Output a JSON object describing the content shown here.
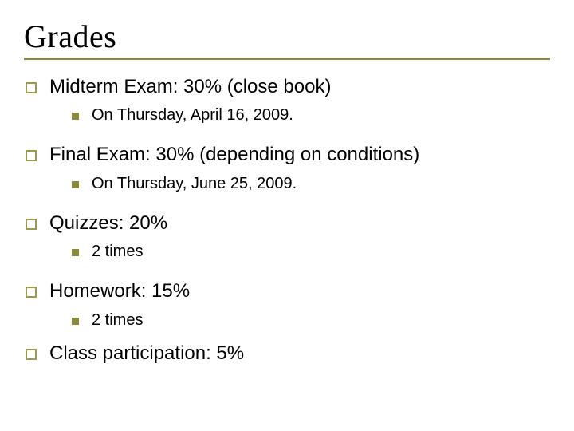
{
  "title": "Grades",
  "colors": {
    "accent": "#8a8a3a",
    "text": "#000000",
    "background": "#ffffff"
  },
  "typography": {
    "title_font": "Times New Roman",
    "body_font": "Verdana",
    "title_size_pt": 30,
    "level1_size_pt": 18,
    "level2_size_pt": 15
  },
  "items": [
    {
      "label": "Midterm Exam: 30% (close book)",
      "sub": "On Thursday, April 16, 2009."
    },
    {
      "label": "Final Exam: 30% (depending on conditions)",
      "sub": "On Thursday, June 25, 2009."
    },
    {
      "label": "Quizzes: 20%",
      "sub": "2 times"
    },
    {
      "label": "Homework: 15%",
      "sub": "2 times"
    },
    {
      "label": "Class participation: 5%"
    }
  ]
}
